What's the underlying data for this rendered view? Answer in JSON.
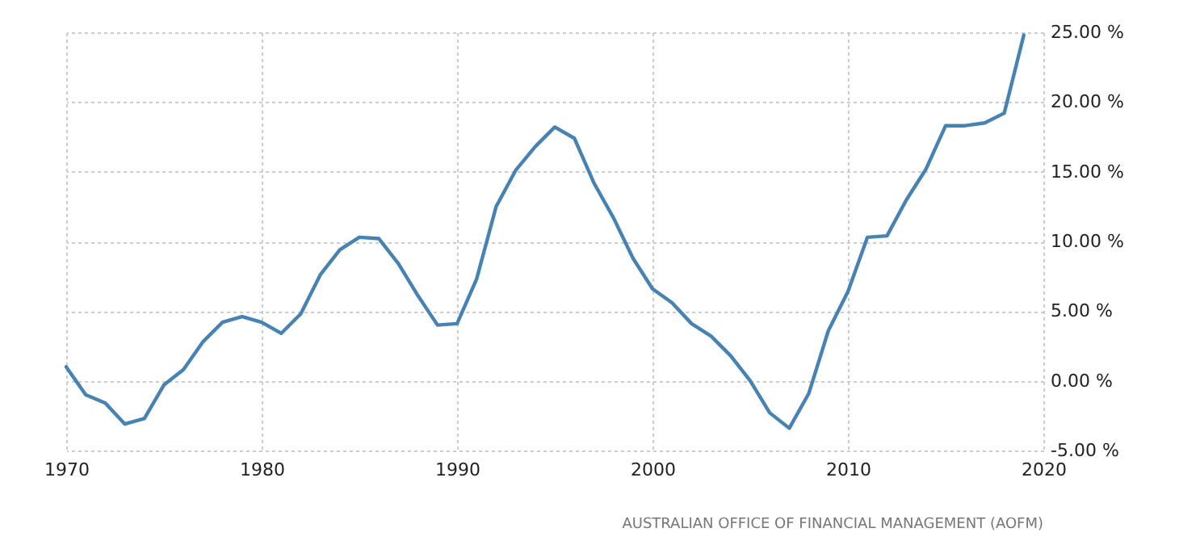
{
  "chart_data": {
    "type": "line",
    "x": [
      1970,
      1971,
      1972,
      1973,
      1974,
      1975,
      1976,
      1977,
      1978,
      1979,
      1980,
      1981,
      1982,
      1983,
      1984,
      1985,
      1986,
      1987,
      1988,
      1989,
      1990,
      1991,
      1992,
      1993,
      1994,
      1995,
      1996,
      1997,
      1998,
      1999,
      2000,
      2001,
      2002,
      2003,
      2004,
      2005,
      2006,
      2007,
      2008,
      2009,
      2010,
      2011,
      2012,
      2013,
      2014,
      2015,
      2016,
      2017,
      2018,
      2019
    ],
    "series": [
      {
        "color": "#4682b4",
        "values": [
          1.0,
          -1.0,
          -1.6,
          -3.1,
          -2.7,
          -0.3,
          0.8,
          2.8,
          4.2,
          4.6,
          4.2,
          3.4,
          4.8,
          7.6,
          9.4,
          10.3,
          10.2,
          8.4,
          6.1,
          4.0,
          4.1,
          7.3,
          12.5,
          15.1,
          16.8,
          18.2,
          17.4,
          14.2,
          11.7,
          8.8,
          6.6,
          5.6,
          4.1,
          3.2,
          1.8,
          0.0,
          -2.3,
          -3.4,
          -0.9,
          3.6,
          6.4,
          10.3,
          10.4,
          13.0,
          15.2,
          18.3,
          18.3,
          18.5,
          19.2,
          24.8
        ]
      }
    ],
    "xlim": [
      1970,
      2020
    ],
    "xticks": [
      1970,
      1980,
      1990,
      2000,
      2010,
      2020
    ],
    "ylim": [
      -5,
      25
    ],
    "yticks": [
      {
        "value": -5,
        "label": "-5.00 %"
      },
      {
        "value": 0,
        "label": "0.00 %"
      },
      {
        "value": 5,
        "label": "5.00 %"
      },
      {
        "value": 10,
        "label": "10.00 %"
      },
      {
        "value": 15,
        "label": "15.00 %"
      },
      {
        "value": 20,
        "label": "20.00 %"
      },
      {
        "value": 25,
        "label": "25.00 %"
      }
    ],
    "grid": true,
    "annotations": [
      "AUSTRALIAN OFFICE OF FINANCIAL MANAGEMENT (AOFM)"
    ]
  }
}
